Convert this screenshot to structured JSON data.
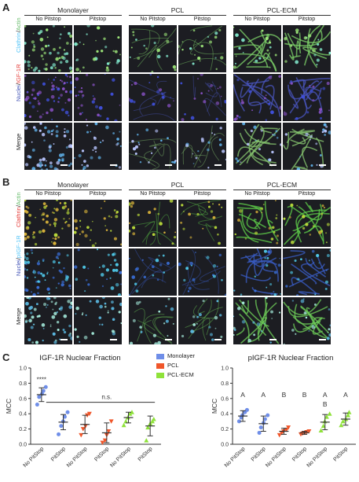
{
  "panelA": {
    "letter": "A",
    "groups": [
      "Monolayer",
      "PCL",
      "PCL-ECM"
    ],
    "subheaders": [
      "No Pitstop",
      "Pitstop",
      "No Pitstop",
      "Pitstop",
      "No Pitstop",
      "Pitstop"
    ],
    "rows": [
      {
        "label_a": "Clathrin",
        "label_sep": "/",
        "label_b": "Actin",
        "color_a": "#4fc3f7",
        "color_b": "#66bb6a"
      },
      {
        "label_a": "Nuclei",
        "label_sep": "/",
        "label_b": "IGF-1R",
        "color_a": "#3f51b5",
        "color_b": "#e53935"
      },
      {
        "label_a": "Merge",
        "label_sep": "",
        "label_b": "",
        "color_a": "#222222",
        "color_b": "#222222"
      }
    ]
  },
  "panelB": {
    "letter": "B",
    "groups": [
      "Monolayer",
      "PCL",
      "PCL-ECM"
    ],
    "subheaders": [
      "No Pitstop",
      "Pitstop",
      "No Pitstop",
      "Pitstop",
      "No Pitstop",
      "Pitstop"
    ],
    "rows": [
      {
        "label_a": "Clathrin",
        "label_sep": "/",
        "label_b": "Actin",
        "color_a": "#e53935",
        "color_b": "#66bb6a"
      },
      {
        "label_a": "Nuclei",
        "label_sep": "/",
        "label_b": "pIGF-1R",
        "color_a": "#3f51b5",
        "color_b": "#4fc3f7"
      },
      {
        "label_a": "Merge",
        "label_sep": "",
        "label_b": "",
        "color_a": "#222222",
        "color_b": "#222222"
      }
    ]
  },
  "panelC": {
    "letter": "C",
    "legend": [
      {
        "label": "Monolayer",
        "color": "#6f8ee8"
      },
      {
        "label": "PCL",
        "color": "#f0562a"
      },
      {
        "label": "PCL-ECM",
        "color": "#8fe23a"
      }
    ]
  },
  "chart_data": [
    {
      "type": "scatter",
      "title": "IGF-1R Nuclear Fraction",
      "ylabel": "MCC",
      "ylim": [
        0,
        1.0
      ],
      "yticks": [
        "0.0",
        "0.2",
        "0.4",
        "0.6",
        "0.8",
        "1.0"
      ],
      "categories": [
        "No PitStop",
        "PitStop",
        "No PitStop",
        "PitStop",
        "No PitStop",
        "PitStop"
      ],
      "annotations": {
        "stars": "****",
        "ns": "n.s."
      },
      "groups": [
        {
          "series": "Monolayer",
          "color": "#6f8ee8",
          "mean": 0.65,
          "sd": 0.09,
          "points": [
            0.52,
            0.62,
            0.66,
            0.7,
            0.75
          ]
        },
        {
          "series": "Monolayer",
          "color": "#6f8ee8",
          "mean": 0.29,
          "sd": 0.1,
          "points": [
            0.13,
            0.24,
            0.3,
            0.36,
            0.42
          ]
        },
        {
          "series": "PCL",
          "color": "#f0562a",
          "mean": 0.26,
          "sd": 0.12,
          "points": [
            0.12,
            0.2,
            0.24,
            0.38,
            0.4
          ]
        },
        {
          "series": "PCL",
          "color": "#f0562a",
          "mean": 0.15,
          "sd": 0.13,
          "points": [
            0.02,
            0.05,
            0.12,
            0.17,
            0.3
          ]
        },
        {
          "series": "PCL-ECM",
          "color": "#8fe23a",
          "mean": 0.35,
          "sd": 0.07,
          "points": [
            0.25,
            0.3,
            0.35,
            0.4,
            0.42
          ]
        },
        {
          "series": "PCL-ECM",
          "color": "#8fe23a",
          "mean": 0.24,
          "sd": 0.13,
          "points": [
            0.05,
            0.22,
            0.27,
            0.3,
            0.33
          ]
        }
      ]
    },
    {
      "type": "scatter",
      "title": "pIGF-1R Nuclear Fraction",
      "ylabel": "MCC",
      "ylim": [
        0,
        1.0
      ],
      "yticks": [
        "0.0",
        "0.2",
        "0.4",
        "0.6",
        "0.8",
        "1.0"
      ],
      "categories": [
        "No PitStop",
        "PitStop",
        "No PitStop",
        "PitStop",
        "No PitStop",
        "PitStop"
      ],
      "groups": [
        {
          "series": "Monolayer",
          "color": "#6f8ee8",
          "mean": 0.37,
          "sd": 0.07,
          "points": [
            0.3,
            0.35,
            0.38,
            0.42,
            0.45
          ],
          "letters": [
            "A"
          ]
        },
        {
          "series": "Monolayer",
          "color": "#6f8ee8",
          "mean": 0.27,
          "sd": 0.1,
          "points": [
            0.15,
            0.22,
            0.28,
            0.33,
            0.38
          ],
          "letters": [
            "A"
          ]
        },
        {
          "series": "PCL",
          "color": "#f0562a",
          "mean": 0.17,
          "sd": 0.04,
          "points": [
            0.12,
            0.15,
            0.17,
            0.19,
            0.22
          ],
          "letters": [
            "B"
          ]
        },
        {
          "series": "PCL",
          "color": "#f0562a",
          "mean": 0.15,
          "sd": 0.02,
          "points": [
            0.13,
            0.14,
            0.15,
            0.16,
            0.17
          ],
          "letters": [
            "B"
          ]
        },
        {
          "series": "PCL-ECM",
          "color": "#8fe23a",
          "mean": 0.29,
          "sd": 0.1,
          "points": [
            0.18,
            0.24,
            0.3,
            0.36,
            0.4
          ],
          "letters": [
            "A",
            "B"
          ]
        },
        {
          "series": "PCL-ECM",
          "color": "#8fe23a",
          "mean": 0.33,
          "sd": 0.08,
          "points": [
            0.25,
            0.3,
            0.33,
            0.38,
            0.42
          ],
          "letters": [
            "A"
          ]
        }
      ]
    }
  ]
}
